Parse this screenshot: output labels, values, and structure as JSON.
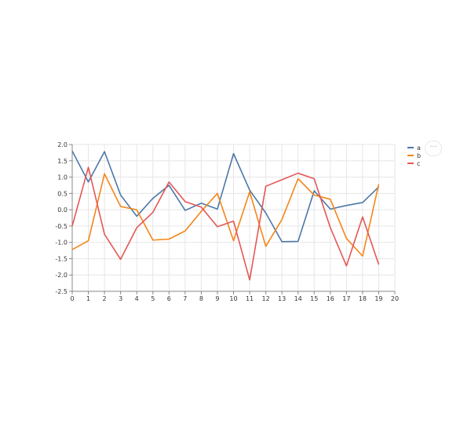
{
  "chart_data": {
    "type": "line",
    "title": "",
    "xlabel": "",
    "ylabel": "",
    "xlim": [
      0,
      20
    ],
    "ylim": [
      -2.5,
      2.0
    ],
    "x_ticks": [
      "0",
      "1",
      "2",
      "3",
      "4",
      "5",
      "6",
      "7",
      "8",
      "9",
      "10",
      "11",
      "12",
      "13",
      "14",
      "15",
      "16",
      "17",
      "18",
      "19",
      "20"
    ],
    "y_ticks": [
      "2.0",
      "1.5",
      "1.0",
      "0.5",
      "0.0",
      "-0.5",
      "-1.0",
      "-1.5",
      "-2.0",
      "-2.5"
    ],
    "grid": true,
    "legend_position": "right",
    "x": [
      0,
      1,
      2,
      3,
      4,
      5,
      6,
      7,
      8,
      9,
      10,
      11,
      12,
      13,
      14,
      15,
      16,
      17,
      18,
      19
    ],
    "series": [
      {
        "name": "a",
        "color": "#4c78a8",
        "values": [
          1.8,
          0.85,
          1.78,
          0.45,
          -0.2,
          0.35,
          0.75,
          -0.02,
          0.2,
          0.02,
          1.72,
          0.6,
          -0.1,
          -0.98,
          -0.97,
          0.58,
          0.02,
          0.13,
          0.22,
          0.7
        ]
      },
      {
        "name": "b",
        "color": "#f58518",
        "values": [
          -1.22,
          -0.95,
          1.1,
          0.1,
          0.0,
          -0.93,
          -0.9,
          -0.65,
          -0.05,
          0.5,
          -0.95,
          0.55,
          -1.12,
          -0.3,
          0.95,
          0.45,
          0.32,
          -0.88,
          -1.42,
          0.78
        ]
      },
      {
        "name": "c",
        "color": "#e45756",
        "values": [
          -0.5,
          1.3,
          -0.75,
          -1.52,
          -0.55,
          -0.08,
          0.85,
          0.25,
          0.08,
          -0.52,
          -0.35,
          -2.15,
          0.72,
          0.92,
          1.12,
          0.95,
          -0.55,
          -1.72,
          -0.22,
          -1.68
        ]
      }
    ]
  },
  "ui": {
    "menu_label": "···"
  }
}
